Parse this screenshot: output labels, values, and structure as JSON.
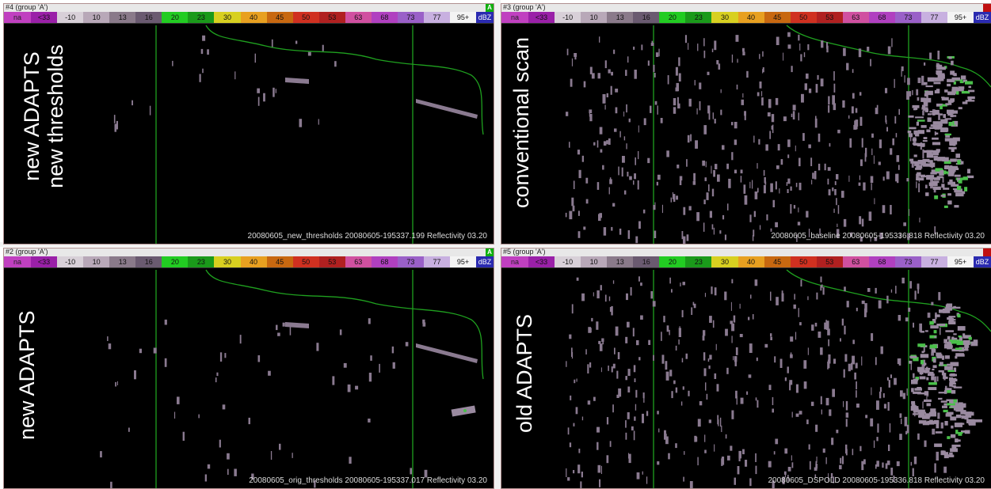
{
  "colorbar": {
    "na_label": "na",
    "unit_label": "dBZ",
    "segments": [
      {
        "label": "<33",
        "color": "#9a20a8"
      },
      {
        "label": "-10",
        "color": "#d8d0d8"
      },
      {
        "label": "10",
        "color": "#b8a8b8"
      },
      {
        "label": "13",
        "color": "#8a7a8a"
      },
      {
        "label": "16",
        "color": "#6a5a70"
      },
      {
        "label": "20",
        "color": "#22cc22"
      },
      {
        "label": "23",
        "color": "#1a9a1a"
      },
      {
        "label": "30",
        "color": "#d8d020"
      },
      {
        "label": "40",
        "color": "#e8a020"
      },
      {
        "label": "45",
        "color": "#c86810"
      },
      {
        "label": "50",
        "color": "#d03020"
      },
      {
        "label": "53",
        "color": "#b02020"
      },
      {
        "label": "63",
        "color": "#d050a0"
      },
      {
        "label": "68",
        "color": "#b040c0"
      },
      {
        "label": "73",
        "color": "#9a60c8"
      },
      {
        "label": "77",
        "color": "#c8b0e0"
      },
      {
        "label": "95+",
        "color": "#f4f4f4"
      }
    ]
  },
  "panels": [
    {
      "title": "#4 (group 'A')",
      "badge": "A",
      "badge_color": "#10b010",
      "label_line1": "new ADAPTS",
      "label_line2": "new thresholds",
      "caption": "20080605_new_thresholds 20080605-195337.199 Reflectivity 03.20"
    },
    {
      "title": "#3 (group 'A')",
      "badge": "",
      "badge_color": "#c01010",
      "label_line1": "conventional scan",
      "label_line2": "",
      "caption": "20080605_baseline 20080605-195336.818 Reflectivity 03.20"
    },
    {
      "title": "#2 (group 'A')",
      "badge": "A",
      "badge_color": "#10b010",
      "label_line1": "new ADAPTS",
      "label_line2": "",
      "caption": "20080605_orig_thresholds 20080605-195337.017 Reflectivity 03.20"
    },
    {
      "title": "#5 (group 'A')",
      "badge": "",
      "badge_color": "#c01010",
      "label_line1": "old ADAPTS",
      "label_line2": "",
      "caption": "20080605_DSPOLD 20080605-195336.818 Reflectivity 03.20"
    }
  ]
}
